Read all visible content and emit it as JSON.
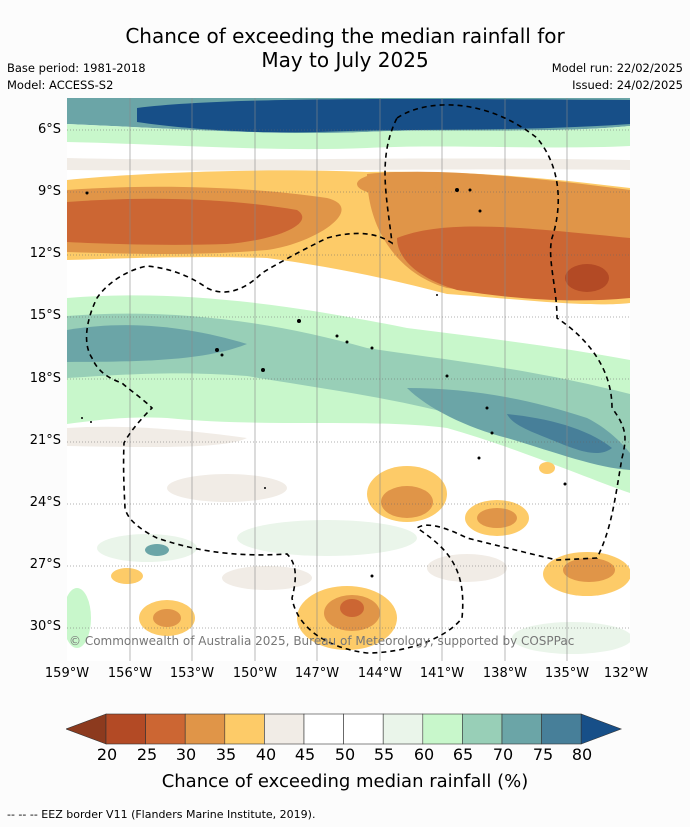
{
  "title_line1": "Chance of exceeding the median rainfall for",
  "title_line2": "May to July 2025",
  "base_period": "Base period: 1981-2018",
  "model": "Model: ACCESS-S2",
  "model_run": "Model run: 22/02/2025",
  "issued": "Issued: 24/02/2025",
  "copyright": "© Commonwealth of Australia 2025, Bureau of Meteorology, supported by COSPPac",
  "lat_labels": [
    "6°S",
    "9°S",
    "12°S",
    "15°S",
    "18°S",
    "21°S",
    "24°S",
    "27°S",
    "30°S"
  ],
  "lon_labels": [
    "159°W",
    "156°W",
    "153°W",
    "150°W",
    "147°W",
    "144°W",
    "141°W",
    "138°W",
    "135°W",
    "132°W"
  ],
  "colorbar": {
    "ticks": [
      "20",
      "25",
      "30",
      "35",
      "40",
      "45",
      "50",
      "55",
      "60",
      "65",
      "70",
      "75",
      "80"
    ],
    "colors": [
      "#8c3a1e",
      "#b34a25",
      "#cc6633",
      "#e09548",
      "#fdcb68",
      "#f1ece6",
      "#ffffff",
      "#ffffff",
      "#eaf5ea",
      "#c8f7cb",
      "#98cfb7",
      "#6ba5a7",
      "#477f99",
      "#174f88"
    ],
    "title": "Chance of exceeding median rainfall (%)"
  },
  "legend_text": "--  --  -- EEZ border V11 (Flanders Marine Institute, 2019)."
}
